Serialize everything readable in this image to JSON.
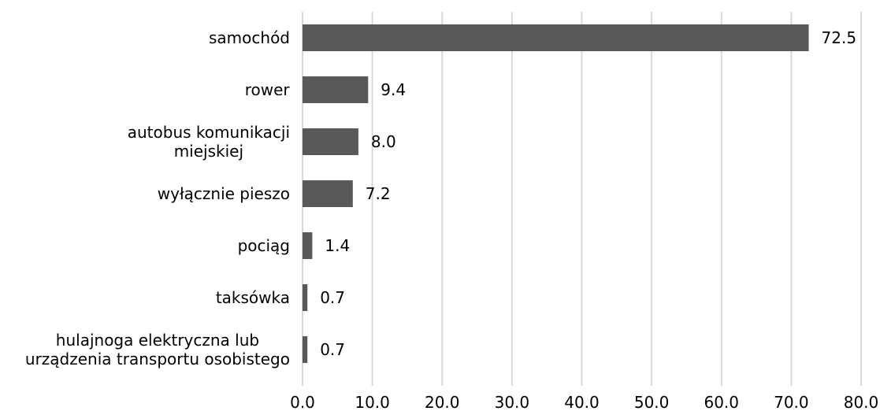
{
  "chart_data": {
    "type": "bar",
    "orientation": "horizontal",
    "title": "",
    "xlabel": "",
    "ylabel": "",
    "categories": [
      [
        "samochód"
      ],
      [
        "rower"
      ],
      [
        "autobus komunikacji",
        "miejskiej"
      ],
      [
        "wyłącznie pieszo"
      ],
      [
        "pociąg"
      ],
      [
        "taksówka"
      ],
      [
        "hulajnoga elektryczna lub",
        "urządzenia transportu osobistego"
      ]
    ],
    "values": [
      72.5,
      9.4,
      8.0,
      7.2,
      1.4,
      0.7,
      0.7
    ],
    "value_labels": [
      "72.5",
      "9.4",
      "8.0",
      "7.2",
      "1.4",
      "0.7",
      "0.7"
    ],
    "xlim": [
      0,
      80
    ],
    "ticks": [
      0,
      10,
      20,
      30,
      40,
      50,
      60,
      70,
      80
    ],
    "tick_labels": [
      "0.0",
      "10.0",
      "20.0",
      "30.0",
      "40.0",
      "50.0",
      "60.0",
      "70.0",
      "80.0"
    ],
    "grid": true,
    "legend": "none",
    "bar_color": "#595959",
    "grid_color": "#d9d9d9"
  }
}
